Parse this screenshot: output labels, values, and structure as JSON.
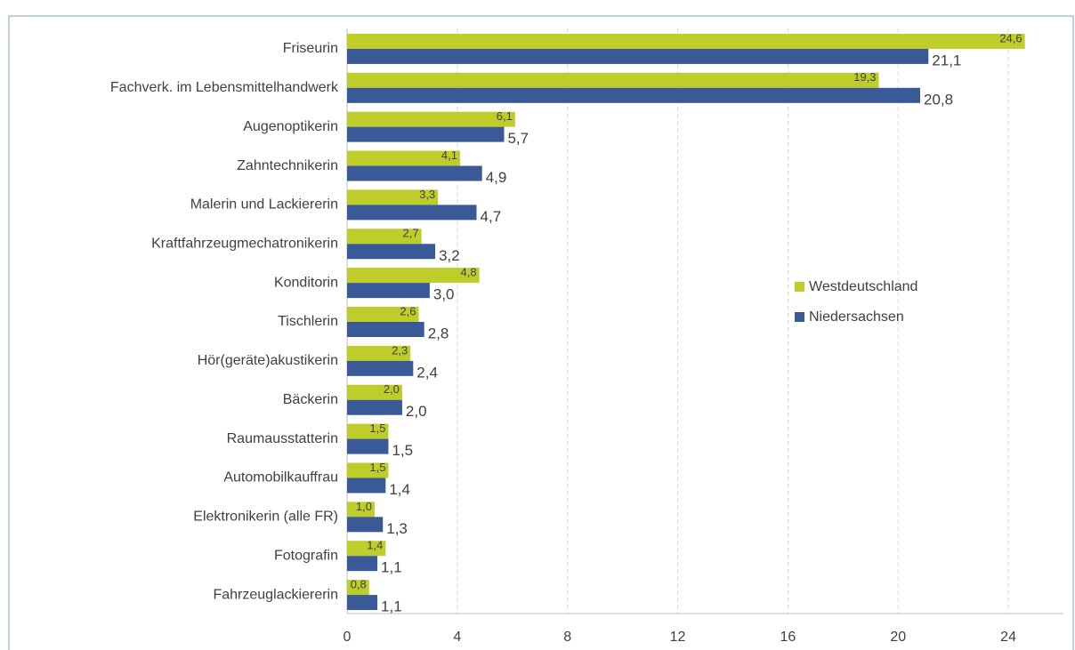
{
  "chart_data": {
    "type": "hbar",
    "categories": [
      "Friseurin",
      "Fachverk. im Lebensmittelhandwerk",
      "Augenoptikerin",
      "Zahntechnikerin",
      "Malerin und Lackiererin",
      "Kraftfahrzeugmechatronikerin",
      "Konditorin",
      "Tischlerin",
      "Hör(geräte)akustikerin",
      "Bäckerin",
      "Raumausstatterin",
      "Automobilkauffrau",
      "Elektronikerin (alle FR)",
      "Fotografin",
      "Fahrzeuglackiererin"
    ],
    "series": [
      {
        "name": "Westdeutschland",
        "color": "#bfcd2b",
        "values": [
          24.6,
          19.3,
          6.1,
          4.1,
          3.3,
          2.7,
          4.8,
          2.6,
          2.3,
          2.0,
          1.5,
          1.5,
          1.0,
          1.4,
          0.8
        ],
        "value_labels": [
          "24,6",
          "19,3",
          "6,1",
          "4,1",
          "3,3",
          "2,7",
          "4,8",
          "2,6",
          "2,3",
          "2,0",
          "1,5",
          "1,5",
          "1,0",
          "1,4",
          "0,8"
        ]
      },
      {
        "name": "Niedersachsen",
        "color": "#3a5a97",
        "values": [
          21.1,
          20.8,
          5.7,
          4.9,
          4.7,
          3.2,
          3.0,
          2.8,
          2.4,
          2.0,
          1.5,
          1.4,
          1.3,
          1.1,
          1.1
        ],
        "value_labels": [
          "21,1",
          "20,8",
          "5,7",
          "4,9",
          "4,7",
          "3,2",
          "3,0",
          "2,8",
          "2,4",
          "2,0",
          "1,5",
          "1,4",
          "1,3",
          "1,1",
          "1,1"
        ]
      }
    ],
    "xlim": [
      0,
      26
    ],
    "xticks": [
      0,
      4,
      8,
      12,
      16,
      20,
      24
    ],
    "grid": true,
    "legend": "right"
  }
}
